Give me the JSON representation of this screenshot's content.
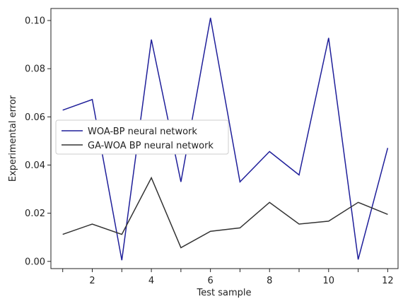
{
  "chart_data": {
    "type": "line",
    "xlabel": "Test sample",
    "ylabel": "Experimental error",
    "x": [
      1,
      2,
      3,
      4,
      5,
      6,
      7,
      8,
      9,
      10,
      11,
      12
    ],
    "xlim": [
      0.6,
      12.35
    ],
    "ylim": [
      -0.003,
      0.105
    ],
    "xticks": [
      2,
      4,
      6,
      8,
      10,
      12
    ],
    "xtick_labels": [
      "2",
      "4",
      "6",
      "8",
      "10",
      "12"
    ],
    "yticks": [
      0.0,
      0.02,
      0.04,
      0.06,
      0.08,
      0.1
    ],
    "ytick_labels": [
      "0.00",
      "0.02",
      "0.04",
      "0.06",
      "0.08",
      "0.10"
    ],
    "grid": false,
    "legend_position": "center-left",
    "series": [
      {
        "name": "WOA-BP neural network",
        "color": "#1f1f9a",
        "values": [
          0.0628,
          0.0672,
          0.0005,
          0.0921,
          0.033,
          0.1011,
          0.033,
          0.0456,
          0.0359,
          0.0928,
          0.0008,
          0.0471
        ]
      },
      {
        "name": "GA-WOA BP neural network",
        "color": "#333333",
        "values": [
          0.0112,
          0.0155,
          0.0112,
          0.0347,
          0.0057,
          0.0125,
          0.0139,
          0.0245,
          0.0155,
          0.0167,
          0.0245,
          0.0195
        ]
      }
    ]
  }
}
